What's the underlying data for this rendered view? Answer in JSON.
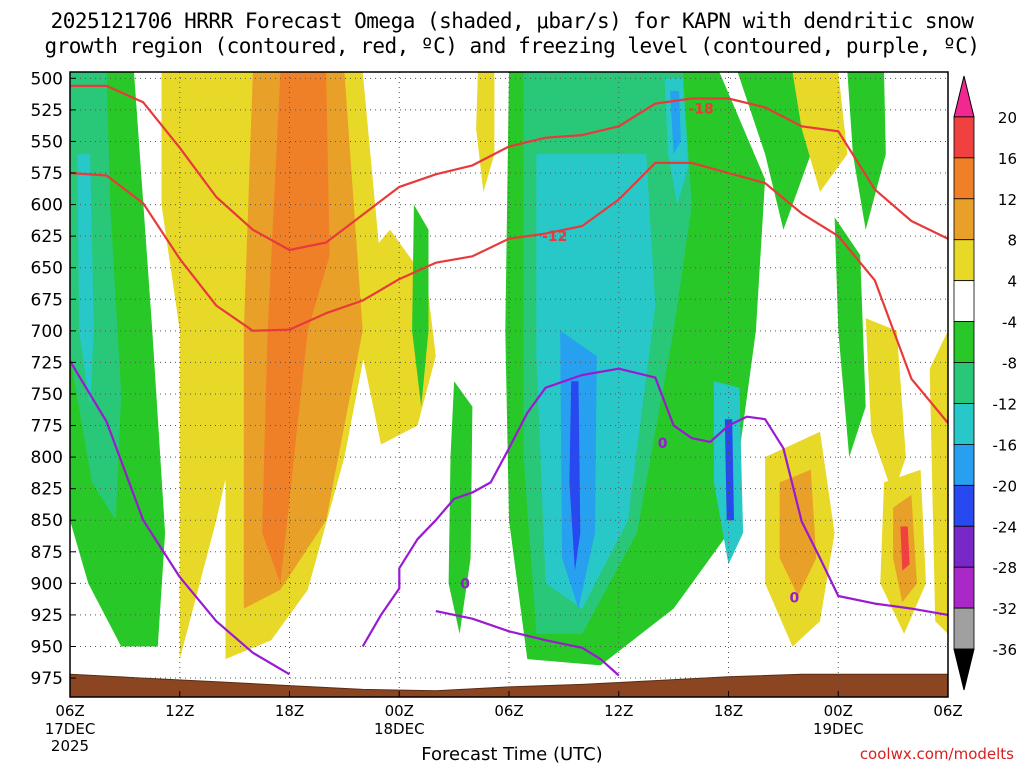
{
  "header": {
    "title_line1": "2025121706 HRRR Forecast Omega (shaded, μbar/s) for KAPN with dendritic snow",
    "title_line2": "growth region (contoured, red, ºC) and freezing level (contoured, purple, ºC)"
  },
  "credit": "coolwx.com/modelts",
  "chart_data": {
    "type": "time-height contour",
    "title": "2025121706 HRRR Forecast Omega (shaded, μbar/s) for KAPN with dendritic snow growth region (contoured, red, ºC) and freezing level (contoured, purple, ºC)",
    "xlabel": "Forecast Time (UTC)",
    "x_ticks": [
      "06Z",
      "12Z",
      "18Z",
      "00Z",
      "06Z",
      "12Z",
      "18Z",
      "00Z",
      "06Z"
    ],
    "x_date_labels": [
      {
        "tick": 0,
        "text": "17DEC"
      },
      {
        "tick": 0,
        "text": "2025"
      },
      {
        "tick": 3,
        "text": "18DEC"
      },
      {
        "tick": 7,
        "text": "19DEC"
      }
    ],
    "forecast_hours": [
      0,
      48
    ],
    "y_ticks": [
      500,
      525,
      550,
      575,
      600,
      625,
      650,
      675,
      700,
      725,
      750,
      775,
      800,
      825,
      850,
      875,
      900,
      925,
      950,
      975
    ],
    "ylim": [
      495,
      990
    ],
    "y_reversed": true,
    "grid": true,
    "colorbar": {
      "values": [
        20,
        16,
        12,
        8,
        4,
        -4,
        -8,
        -12,
        -16,
        -20,
        -24,
        -28,
        -32,
        -36
      ],
      "colors": [
        "#f02890",
        "#f04040",
        "#f08028",
        "#e8a028",
        "#e8d828",
        "#ffffff",
        "#28c828",
        "#28c878",
        "#28c8c8",
        "#28a0f0",
        "#2848f0",
        "#7828c8",
        "#a828c8",
        "#a0a0a0",
        "#000000"
      ]
    },
    "contour_labels": [
      {
        "text": "-18",
        "color": "#e83a3a"
      },
      {
        "text": "-12",
        "color": "#e83a3a"
      },
      {
        "text": "0",
        "color": "#9a1ad2"
      },
      {
        "text": "0",
        "color": "#9a1ad2"
      },
      {
        "text": "0",
        "color": "#9a1ad2"
      }
    ],
    "series": [
      {
        "color": "#e83a3a",
        "points": [
          [
            0,
            506
          ],
          [
            2,
            506
          ],
          [
            4,
            519
          ],
          [
            6,
            555
          ],
          [
            8,
            594
          ],
          [
            10,
            620
          ],
          [
            12,
            636
          ],
          [
            14,
            630
          ],
          [
            16,
            608
          ],
          [
            18,
            586
          ],
          [
            20,
            576
          ],
          [
            22,
            569
          ],
          [
            24,
            554
          ],
          [
            26,
            547
          ],
          [
            28,
            545
          ],
          [
            30,
            538
          ],
          [
            32,
            520
          ],
          [
            34,
            516
          ],
          [
            36,
            516
          ],
          [
            38,
            523
          ],
          [
            40,
            538
          ],
          [
            42,
            542
          ],
          [
            44,
            588
          ],
          [
            46,
            613
          ],
          [
            48,
            627
          ]
        ]
      },
      {
        "color": "#e83a3a",
        "points": [
          [
            0,
            575
          ],
          [
            2,
            577
          ],
          [
            4,
            599
          ],
          [
            6,
            643
          ],
          [
            8,
            680
          ],
          [
            10,
            700
          ],
          [
            12,
            699
          ],
          [
            14,
            686
          ],
          [
            16,
            676
          ],
          [
            18,
            659
          ],
          [
            20,
            646
          ],
          [
            22,
            641
          ],
          [
            24,
            627
          ],
          [
            26,
            623
          ],
          [
            28,
            617
          ],
          [
            30,
            596
          ],
          [
            32,
            567
          ],
          [
            34,
            567
          ],
          [
            36,
            575
          ],
          [
            38,
            583
          ],
          [
            40,
            607
          ],
          [
            42,
            625
          ],
          [
            44,
            660
          ],
          [
            46,
            738
          ],
          [
            48,
            773
          ]
        ]
      },
      {
        "color": "#9a1ad2",
        "points": [
          [
            0,
            724
          ],
          [
            2,
            772
          ],
          [
            4,
            850
          ],
          [
            6,
            895
          ],
          [
            8,
            930
          ],
          [
            10,
            955
          ],
          [
            12,
            972
          ]
        ]
      },
      {
        "color": "#9a1ad2",
        "points": [
          [
            16,
            950
          ],
          [
            17,
            925
          ],
          [
            18,
            904
          ],
          [
            18,
            888
          ],
          [
            19,
            865
          ],
          [
            20,
            850
          ],
          [
            21,
            833
          ],
          [
            22,
            828
          ],
          [
            23,
            820
          ],
          [
            24,
            793
          ],
          [
            25,
            765
          ],
          [
            26,
            745
          ],
          [
            28,
            735
          ],
          [
            30,
            730
          ],
          [
            32,
            737
          ],
          [
            33,
            775
          ],
          [
            34,
            785
          ],
          [
            35,
            788
          ],
          [
            36,
            775
          ],
          [
            37,
            768
          ],
          [
            38,
            770
          ],
          [
            39,
            793
          ],
          [
            40,
            851
          ],
          [
            41,
            880
          ],
          [
            42,
            910
          ],
          [
            44,
            916
          ],
          [
            46,
            920
          ],
          [
            48,
            925
          ]
        ]
      },
      {
        "color": "#9a1ad2",
        "points": [
          [
            20,
            922
          ],
          [
            22,
            928
          ],
          [
            24,
            938
          ],
          [
            26,
            945
          ],
          [
            28,
            951
          ],
          [
            29,
            960
          ],
          [
            30,
            973
          ]
        ]
      }
    ]
  }
}
